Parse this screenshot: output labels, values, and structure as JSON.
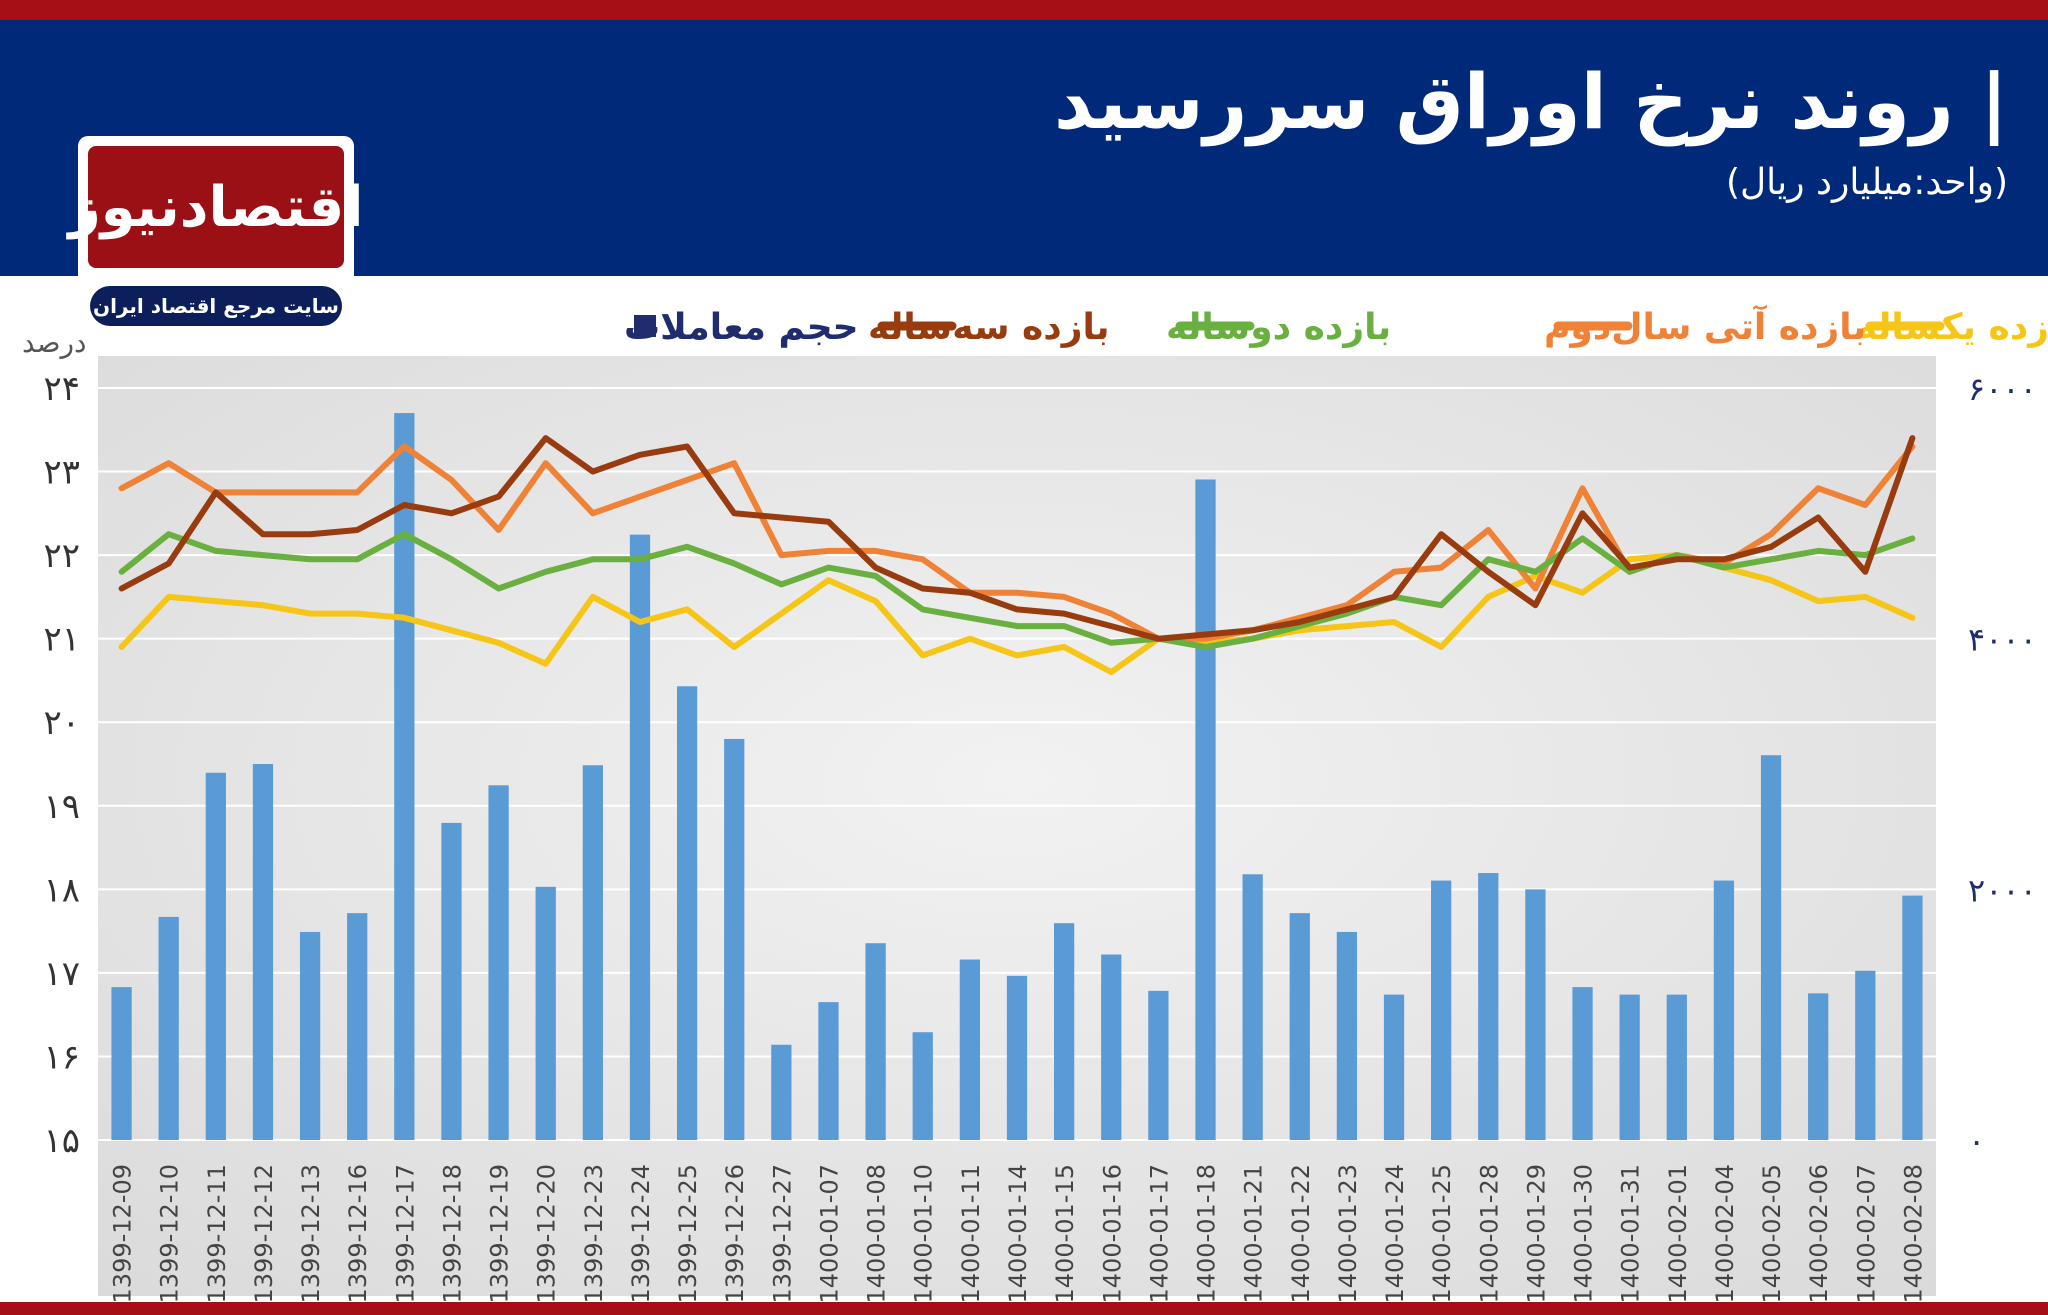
{
  "header": {
    "title": "| روند نرخ اوراق سررسید",
    "subtitle": "(واحد:میلیارد ریال)"
  },
  "logo": {
    "name": "اقتصادنیوز",
    "tagline": "سایت مرجع اقتصاد ایران"
  },
  "colors": {
    "top_stripe": "#a50f15",
    "header_bg": "#00297a",
    "plot_bg": "#e7e7e7",
    "bar": "#5b9bd5",
    "one_year": "#f5c518",
    "futures_second_year": "#ef8237",
    "two_year": "#6ab040",
    "three_year": "#983c0f",
    "volume_legend": "#1f2d6e"
  },
  "chart_data": {
    "type": "bar",
    "categories": [
      "1399-12-09",
      "1399-12-10",
      "1399-12-11",
      "1399-12-12",
      "1399-12-13",
      "1399-12-16",
      "1399-12-17",
      "1399-12-18",
      "1399-12-19",
      "1399-12-20",
      "1399-12-23",
      "1399-12-24",
      "1399-12-25",
      "1399-12-26",
      "1399-12-27",
      "1400-01-07",
      "1400-01-08",
      "1400-01-10",
      "1400-01-11",
      "1400-01-14",
      "1400-01-15",
      "1400-01-16",
      "1400-01-17",
      "1400-01-18",
      "1400-01-21",
      "1400-01-22",
      "1400-01-23",
      "1400-01-24",
      "1400-01-25",
      "1400-01-28",
      "1400-01-29",
      "1400-01-30",
      "1400-01-31",
      "1400-02-01",
      "1400-02-04",
      "1400-02-05",
      "1400-02-06",
      "1400-02-07",
      "1400-02-08"
    ],
    "y_left": {
      "label": "درصد",
      "min": 15,
      "max": 24,
      "ticks": [
        "۱۵",
        "۱۶",
        "۱۷",
        "۱۸",
        "۱۹",
        "۲۰",
        "۲۱",
        "۲۲",
        "۲۳",
        "۲۴"
      ]
    },
    "y_right": {
      "min": 0,
      "max": 6000,
      "ticks": [
        "۰",
        "۲۰۰۰",
        "۴۰۰۰",
        "۶۰۰۰"
      ]
    },
    "bars": {
      "name": "حجم معاملات",
      "values": [
        1220,
        1780,
        2930,
        3000,
        1660,
        1810,
        5800,
        2530,
        2830,
        2020,
        2990,
        4830,
        3620,
        3200,
        760,
        1100,
        1570,
        860,
        1440,
        1310,
        1730,
        1480,
        1190,
        5270,
        2120,
        1810,
        1660,
        1160,
        2070,
        2130,
        2000,
        1220,
        1160,
        1160,
        2070,
        3070,
        1170,
        1350,
        1950
      ]
    },
    "series": [
      {
        "name": "بازده یکساله",
        "color_key": "one_year",
        "values": [
          20.9,
          21.5,
          21.45,
          21.4,
          21.3,
          21.3,
          21.25,
          21.1,
          20.95,
          20.7,
          21.5,
          21.2,
          21.35,
          20.9,
          21.3,
          21.7,
          21.45,
          20.8,
          21.0,
          20.8,
          20.9,
          20.6,
          21.0,
          20.95,
          21.0,
          21.1,
          21.15,
          21.2,
          20.9,
          21.5,
          21.75,
          21.55,
          21.95,
          22.0,
          21.85,
          21.7,
          21.45,
          21.5,
          21.25
        ]
      },
      {
        "name": "بازده آتی سال‌دوم",
        "color_key": "futures_second_year",
        "values": [
          22.8,
          23.1,
          22.75,
          22.75,
          22.75,
          22.75,
          23.3,
          22.9,
          22.3,
          23.1,
          22.5,
          22.7,
          22.9,
          23.1,
          22.0,
          22.05,
          22.05,
          21.95,
          21.55,
          21.55,
          21.5,
          21.3,
          21.0,
          21.0,
          21.1,
          21.25,
          21.4,
          21.8,
          21.85,
          22.3,
          21.6,
          22.8,
          21.8,
          22.0,
          21.9,
          22.25,
          22.8,
          22.6,
          23.3
        ]
      },
      {
        "name": "بازده دوساله",
        "color_key": "two_year",
        "values": [
          21.8,
          22.25,
          22.05,
          22.0,
          21.95,
          21.95,
          22.25,
          21.95,
          21.6,
          21.8,
          21.95,
          21.95,
          22.1,
          21.9,
          21.65,
          21.85,
          21.75,
          21.35,
          21.25,
          21.15,
          21.15,
          20.95,
          21.0,
          20.9,
          21.0,
          21.15,
          21.3,
          21.5,
          21.4,
          21.95,
          21.8,
          22.2,
          21.8,
          22.0,
          21.85,
          21.95,
          22.05,
          22.0,
          22.2
        ]
      },
      {
        "name": "بازده سه‌ساله",
        "color_key": "three_year",
        "values": [
          21.6,
          21.9,
          22.75,
          22.25,
          22.25,
          22.3,
          22.6,
          22.5,
          22.7,
          23.4,
          23.0,
          23.2,
          23.3,
          22.5,
          22.45,
          22.4,
          21.85,
          21.6,
          21.55,
          21.35,
          21.3,
          21.15,
          21.0,
          21.05,
          21.1,
          21.2,
          21.35,
          21.5,
          22.25,
          21.8,
          21.4,
          22.5,
          21.85,
          21.95,
          21.95,
          22.1,
          22.45,
          21.8,
          23.4
        ]
      }
    ],
    "legend": {
      "placement": "top",
      "items": [
        "بازده یکساله",
        "بازده آتی سال‌دوم",
        "بازده دوساله",
        "بازده سه‌ساله",
        "حجم معاملات"
      ]
    },
    "grid": true
  }
}
